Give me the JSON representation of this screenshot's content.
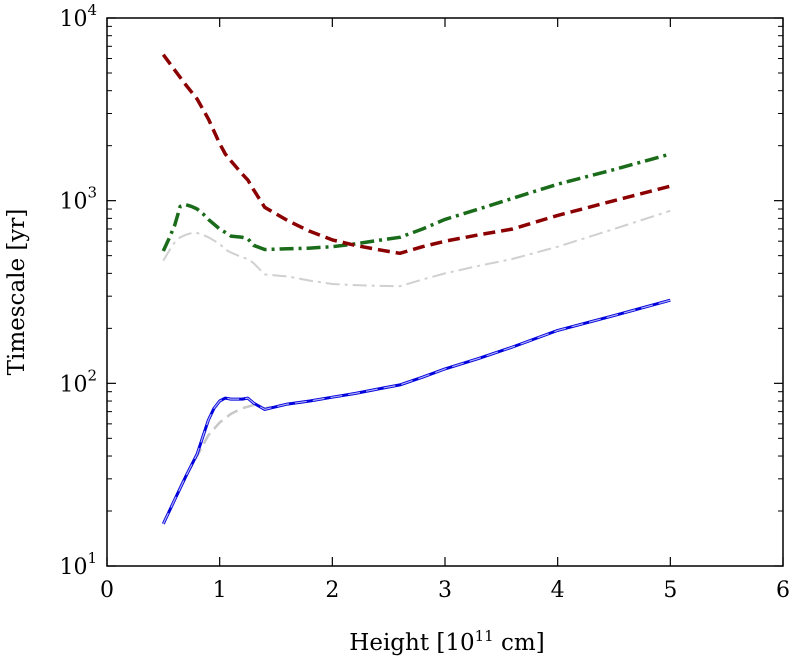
{
  "chart_data": {
    "type": "line",
    "title": "",
    "xlabel": {
      "base": "Height [10",
      "sup": "11",
      "tail": " cm]"
    },
    "ylabel": "Timescale [yr]",
    "xlim": [
      0,
      6
    ],
    "ylim": [
      10,
      10000
    ],
    "y_scale": "log",
    "grid": false,
    "legend": "none",
    "x_ticks": [
      {
        "value": 0,
        "label": "0"
      },
      {
        "value": 1,
        "label": "1"
      },
      {
        "value": 2,
        "label": "2"
      },
      {
        "value": 3,
        "label": "3"
      },
      {
        "value": 4,
        "label": "4"
      },
      {
        "value": 5,
        "label": "5"
      },
      {
        "value": 6,
        "label": "6"
      }
    ],
    "y_ticks": [
      {
        "value": 10,
        "base": "10",
        "exp": "1"
      },
      {
        "value": 100,
        "base": "10",
        "exp": "2"
      },
      {
        "value": 1000,
        "base": "10",
        "exp": "3"
      },
      {
        "value": 10000,
        "base": "10",
        "exp": "4"
      }
    ],
    "series": [
      {
        "color": "#d0d0d0",
        "style": "dashdot",
        "width": 2,
        "x": [
          0.5,
          0.55,
          0.6,
          0.65,
          0.7,
          0.75,
          0.8,
          0.85,
          0.9,
          1.0,
          1.05,
          1.1,
          1.2,
          1.25,
          1.3,
          1.4,
          1.6,
          1.8,
          2.0,
          2.2,
          2.4,
          2.6,
          2.8,
          3.0,
          3.3,
          3.6,
          4.0,
          4.5,
          5.0
        ],
        "y": [
          470,
          530,
          590,
          630,
          650,
          665,
          665,
          650,
          630,
          580,
          540,
          520,
          490,
          480,
          455,
          395,
          385,
          365,
          350,
          345,
          342,
          340,
          370,
          400,
          440,
          480,
          560,
          700,
          880
        ]
      },
      {
        "color": "#1a6b1a",
        "style": "dashdot",
        "width": 3.5,
        "x": [
          0.5,
          0.55,
          0.6,
          0.65,
          0.7,
          0.75,
          0.8,
          0.85,
          0.9,
          1.0,
          1.05,
          1.1,
          1.2,
          1.25,
          1.3,
          1.4,
          1.6,
          1.8,
          2.0,
          2.2,
          2.4,
          2.6,
          2.8,
          3.0,
          3.3,
          3.6,
          4.0,
          4.5,
          5.0
        ],
        "y": [
          530,
          620,
          730,
          930,
          950,
          930,
          900,
          850,
          790,
          700,
          670,
          640,
          630,
          620,
          570,
          540,
          545,
          550,
          560,
          580,
          605,
          630,
          700,
          790,
          900,
          1030,
          1230,
          1480,
          1800
        ]
      },
      {
        "color": "#8b0000",
        "style": "dashed",
        "width": 3.5,
        "x": [
          0.5,
          0.6,
          0.7,
          0.8,
          0.9,
          1.0,
          1.05,
          1.1,
          1.2,
          1.25,
          1.3,
          1.4,
          1.6,
          1.8,
          2.0,
          2.2,
          2.4,
          2.6,
          2.8,
          3.0,
          3.3,
          3.6,
          4.0,
          4.5,
          5.0
        ],
        "y": [
          6300,
          5200,
          4300,
          3600,
          2800,
          2050,
          1800,
          1650,
          1400,
          1300,
          1150,
          920,
          780,
          680,
          610,
          570,
          540,
          515,
          560,
          600,
          650,
          700,
          830,
          1000,
          1200
        ]
      },
      {
        "color": "#c8c8c8",
        "style": "dashed",
        "width": 2.5,
        "x": [
          0.5,
          0.6,
          0.7,
          0.8,
          0.9,
          1.0,
          1.1,
          1.2,
          1.3,
          1.4,
          1.6,
          1.8,
          2.0,
          2.2,
          2.4,
          2.6,
          2.8,
          3.0,
          3.3,
          3.6,
          4.0,
          4.5,
          5.0
        ],
        "y": [
          17,
          23,
          31,
          40,
          52,
          61,
          68,
          73,
          76,
          73,
          77,
          80,
          84,
          88,
          93,
          98,
          108,
          120,
          137,
          158,
          195,
          235,
          285
        ]
      },
      {
        "color": "#0000dd",
        "style": "solid",
        "width": 3,
        "x": [
          0.5,
          0.6,
          0.7,
          0.8,
          0.85,
          0.9,
          0.95,
          1.0,
          1.05,
          1.1,
          1.2,
          1.25,
          1.3,
          1.4,
          1.6,
          1.8,
          2.0,
          2.2,
          2.4,
          2.6,
          2.8,
          3.0,
          3.3,
          3.6,
          4.0,
          4.5,
          5.0
        ],
        "y": [
          17,
          23,
          31,
          41,
          51,
          63,
          73,
          80,
          83,
          82,
          82,
          83,
          78,
          72,
          77,
          80,
          84,
          88,
          93,
          98,
          108,
          120,
          137,
          158,
          195,
          235,
          285
        ]
      },
      {
        "color": "#b0b0f5",
        "style": "dashed",
        "width": 1.2,
        "x": [
          0.5,
          0.6,
          0.7,
          0.8,
          0.85,
          0.9,
          0.95,
          1.0,
          1.05,
          1.1,
          1.2,
          1.25,
          1.3,
          1.4,
          1.6,
          1.8,
          2.0,
          2.2,
          2.4,
          2.6,
          2.8,
          3.0,
          3.3,
          3.6,
          4.0,
          4.5,
          5.0
        ],
        "y": [
          17,
          23,
          31,
          41,
          51,
          63,
          73,
          80,
          83,
          82,
          82,
          83,
          78,
          72,
          77,
          80,
          84,
          88,
          93,
          98,
          108,
          120,
          137,
          158,
          195,
          235,
          285
        ]
      }
    ]
  }
}
